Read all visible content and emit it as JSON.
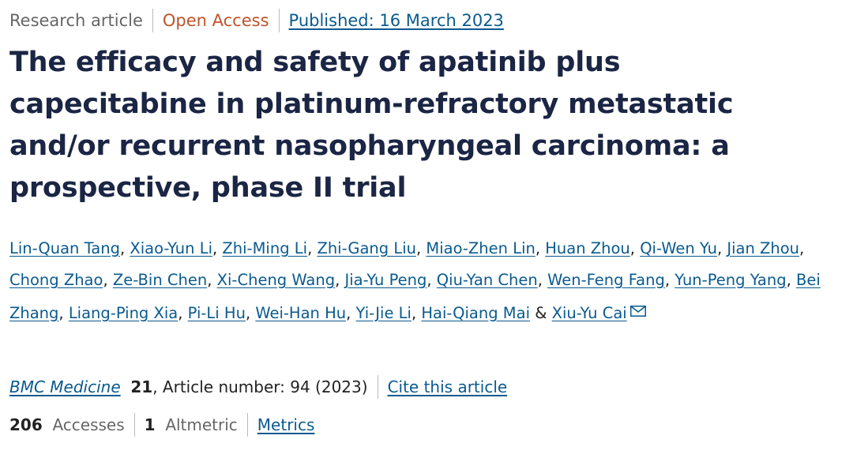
{
  "meta": {
    "type": "Research article",
    "access": "Open Access",
    "published": "Published: 16 March 2023"
  },
  "title": "The efficacy and safety of apatinib plus capecitabine in platinum-refractory metastatic and/or recurrent nasopharyngeal carcinoma: a prospective, phase II trial",
  "authors": [
    "Lin-Quan Tang",
    "Xiao-Yun Li",
    "Zhi-Ming Li",
    "Zhi-Gang Liu",
    "Miao-Zhen Lin",
    "Huan Zhou",
    "Qi-Wen Yu",
    "Jian Zhou",
    "Chong Zhao",
    "Ze-Bin Chen",
    "Xi-Cheng Wang",
    "Jia-Yu Peng",
    "Qiu-Yan Chen",
    "Wen-Feng Fang",
    "Yun-Peng Yang",
    "Bei Zhang",
    "Liang-Ping Xia",
    "Pi-Li Hu",
    "Wei-Han Hu",
    "Yi-Jie Li",
    "Hai-Qiang Mai",
    "Xiu-Yu Cai"
  ],
  "author_conjunction": "&",
  "corresponding_icon": "envelope-icon",
  "journal": {
    "name": "BMC Medicine",
    "volume": "21",
    "rest": ", Article number: 94 (2023)",
    "cite": "Cite this article"
  },
  "stats": {
    "accesses": "206",
    "accesses_label": "Accesses",
    "altmetric": "1",
    "altmetric_label": "Altmetric",
    "metrics": "Metrics"
  },
  "colors": {
    "link": "#0a5a8f",
    "open_access": "#c0532a",
    "title": "#1b2544"
  }
}
